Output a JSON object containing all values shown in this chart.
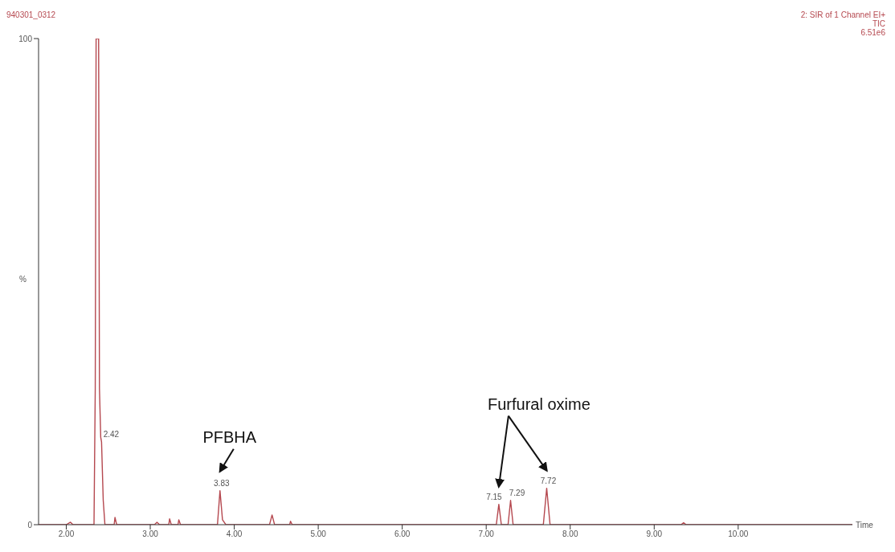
{
  "chart_data": {
    "type": "line",
    "title": "940301_0312",
    "xlabel": "Time",
    "ylabel": "%",
    "x": [
      1.67,
      2.0,
      2.05,
      2.08,
      2.33,
      2.345,
      2.355,
      2.385,
      2.395,
      2.41,
      2.42,
      2.44,
      2.46,
      2.57,
      2.58,
      2.6,
      3.05,
      3.08,
      3.11,
      3.22,
      3.23,
      3.25,
      3.33,
      3.34,
      3.36,
      3.8,
      3.83,
      3.86,
      3.9,
      4.42,
      4.45,
      4.48,
      4.66,
      4.67,
      4.69,
      7.12,
      7.15,
      7.18,
      7.26,
      7.29,
      7.32,
      7.68,
      7.72,
      7.76,
      9.32,
      9.35,
      9.38,
      11.36
    ],
    "series": [
      {
        "color": "#b5484f",
        "values": [
          0,
          0,
          0.5,
          0,
          0,
          28,
          100,
          100,
          28,
          18,
          17,
          5,
          0,
          0,
          1.5,
          0,
          0,
          0.5,
          0,
          0,
          1.2,
          0,
          0,
          1,
          0,
          0,
          7,
          1,
          0,
          0,
          2,
          0,
          0,
          0.7,
          0,
          0,
          4.2,
          0,
          0,
          5,
          0,
          0,
          7.5,
          0,
          0,
          0.4,
          0,
          0
        ]
      }
    ],
    "xlim": [
      1.67,
      11.36
    ],
    "ylim": [
      0,
      100
    ],
    "xticks": [
      {
        "value": 2,
        "label": "2.00"
      },
      {
        "value": 3,
        "label": "3.00"
      },
      {
        "value": 4,
        "label": "4.00"
      },
      {
        "value": 5,
        "label": "5.00"
      },
      {
        "value": 6,
        "label": "6.00"
      },
      {
        "value": 7,
        "label": "7.00"
      },
      {
        "value": 8,
        "label": "8.00"
      },
      {
        "value": 9,
        "label": "9.00"
      },
      {
        "value": 10,
        "label": "10.00"
      }
    ],
    "yticks": [
      0,
      100
    ],
    "grid": false,
    "legend": false,
    "marker": "none",
    "line_style": "solid",
    "annotations": [
      "2: SIR of 1 Channel EI+",
      "TIC",
      "6.51e6",
      {
        "text": "2.42",
        "x": 2.42,
        "y": 17
      },
      {
        "text": "3.83",
        "x": 3.83,
        "y": 7
      },
      {
        "text": "7.15",
        "x": 7.15,
        "y": 4.2
      },
      {
        "text": "7.29",
        "x": 7.29,
        "y": 5
      },
      {
        "text": "7.72",
        "x": 7.72,
        "y": 7.5
      },
      "PFBHA",
      "Furfural oxime"
    ]
  }
}
